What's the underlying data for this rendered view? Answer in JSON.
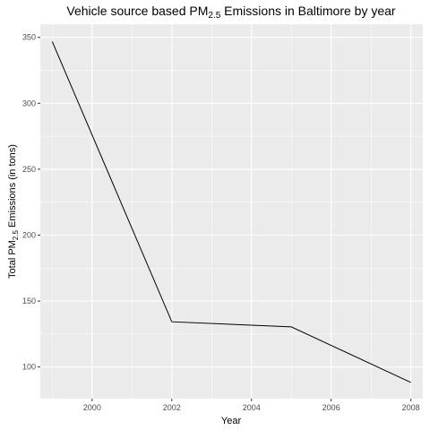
{
  "chart_data": {
    "type": "line",
    "title": {
      "prefix": "Vehicle source based ",
      "pm_main": "PM",
      "pm_sub": "2.5",
      "suffix": " Emissions in Baltimore by year"
    },
    "xlabel": "Year",
    "ylabel": {
      "prefix": "Total ",
      "pm_main": "PM",
      "pm_sub": "2.5",
      "suffix": " Emissions (in tons)"
    },
    "x": [
      1999,
      2002,
      2005,
      2008
    ],
    "y": [
      346.8,
      134.3,
      130.4,
      88.3
    ],
    "xlim": [
      1998.7,
      2008.3
    ],
    "ylim": [
      76,
      360
    ],
    "x_ticks": [
      2000,
      2002,
      2004,
      2006,
      2008
    ],
    "x_tick_labels": [
      "2000",
      "2002",
      "2004",
      "2006",
      "2008"
    ],
    "y_ticks": [
      100,
      150,
      200,
      250,
      300,
      350
    ],
    "y_tick_labels": [
      "100",
      "150",
      "200",
      "250",
      "300",
      "350"
    ],
    "grid": true,
    "line_color": "#000000",
    "panel_background": "#ebebeb",
    "grid_color": "#ffffff"
  }
}
